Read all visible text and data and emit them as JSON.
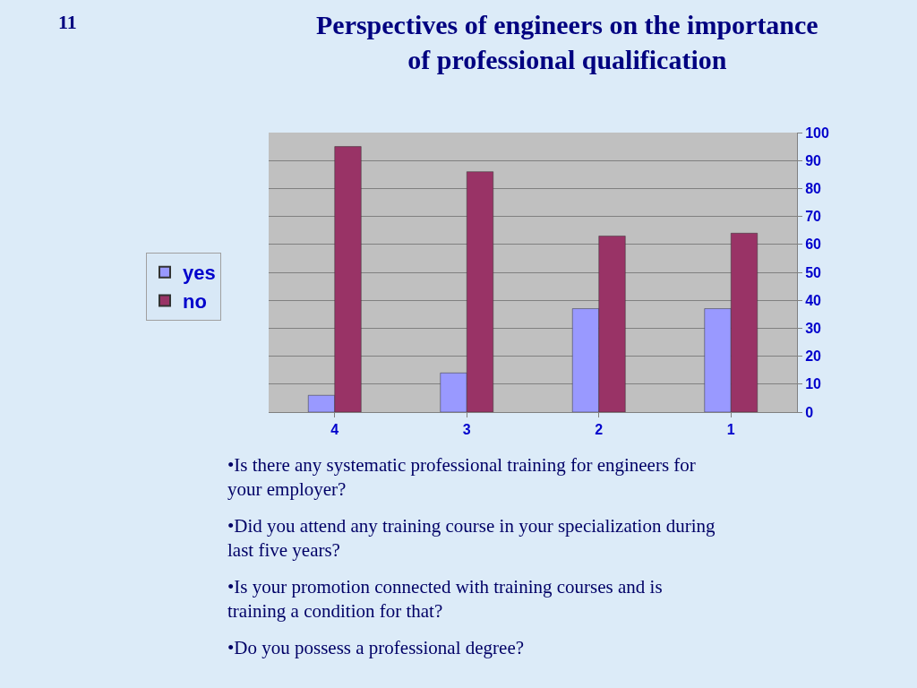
{
  "chart_data": {
    "type": "bar",
    "title": "Perspectives of engineers on the importance\nof professional qualification",
    "categories": [
      "4",
      "3",
      "2",
      "1"
    ],
    "series": [
      {
        "name": "yes",
        "color": "#9999ff",
        "values": [
          6,
          14,
          37,
          37
        ]
      },
      {
        "name": "no",
        "color": "#993366",
        "values": [
          95,
          86,
          63,
          64
        ]
      }
    ],
    "ylim": [
      0,
      100
    ],
    "yticks": [
      0,
      10,
      20,
      30,
      40,
      50,
      60,
      70,
      80,
      90,
      100
    ],
    "grid": "y",
    "legend": "left",
    "annotations": [
      "11",
      "•Is there any systematic professional training for engineers for\nyour employer?",
      "•Did you attend any training course in your specialization during\nlast five years?",
      "•Is your promotion connected with training courses and is\ntraining a condition for that?",
      "•Do you possess a professional degree?"
    ]
  }
}
